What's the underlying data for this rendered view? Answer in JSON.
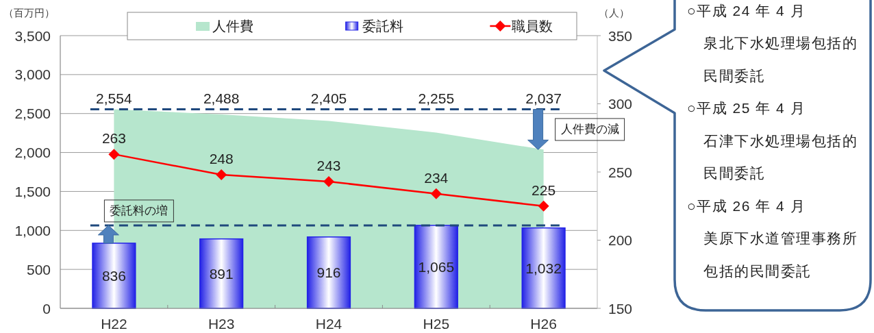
{
  "chart_data": {
    "type": "bar",
    "categories": [
      "H22",
      "H23",
      "H24",
      "H25",
      "H26"
    ],
    "ylabel": "（百万円）",
    "y2label": "（人）",
    "ylim": [
      0,
      3500
    ],
    "yticks": [
      0,
      500,
      {
        "value": 1000,
        "label": "1,000"
      },
      {
        "value": 1500,
        "label": "1,500"
      },
      {
        "value": 2000,
        "label": "2,000"
      },
      {
        "value": 2500,
        "label": "2,500"
      },
      {
        "value": 3000,
        "label": "3,000"
      },
      {
        "value": 3500,
        "label": "3,500"
      }
    ],
    "y2lim": [
      150,
      350
    ],
    "y2ticks": [
      150,
      200,
      250,
      300,
      350
    ],
    "series": [
      {
        "name": "人件費",
        "type": "area",
        "color": "#b6e6cd",
        "values": [
          2554,
          2488,
          2405,
          2255,
          2037
        ],
        "value_labels": [
          "2,554",
          "2,488",
          "2,405",
          "2,255",
          "2,037"
        ]
      },
      {
        "name": "委託料",
        "type": "bar",
        "color": "#2323e6",
        "values": [
          836,
          891,
          916,
          1065,
          1032
        ],
        "value_labels": [
          "836",
          "891",
          "916",
          "1,065",
          "1,032"
        ]
      },
      {
        "name": "職員数",
        "type": "line",
        "axis": "y2",
        "color": "#ff0000",
        "marker": "diamond",
        "values": [
          263,
          248,
          243,
          234,
          225
        ],
        "value_labels": [
          "263",
          "248",
          "243",
          "234",
          "225"
        ]
      }
    ],
    "ref_lines": [
      {
        "axis": "y",
        "value": 2554,
        "color": "#1f497d",
        "line_style": "dashed"
      },
      {
        "axis": "y",
        "value": 1065,
        "color": "#1f497d",
        "line_style": "dashed"
      }
    ],
    "annotations": [
      {
        "text": "委託料の増",
        "x": "H22",
        "y": 1065
      },
      {
        "text": "人件費の減",
        "x": "H26",
        "y": 2037
      },
      "○平成 24 年 4 月",
      "泉北下水処理場包括的",
      "民間委託",
      "○平成 25 年 4 月",
      "石津下水処理場包括的",
      "民間委託",
      "○平成 26 年 4 月",
      "美原下水道管理事務所",
      "包括的民間委託"
    ],
    "grid": "y",
    "legend": "top"
  }
}
